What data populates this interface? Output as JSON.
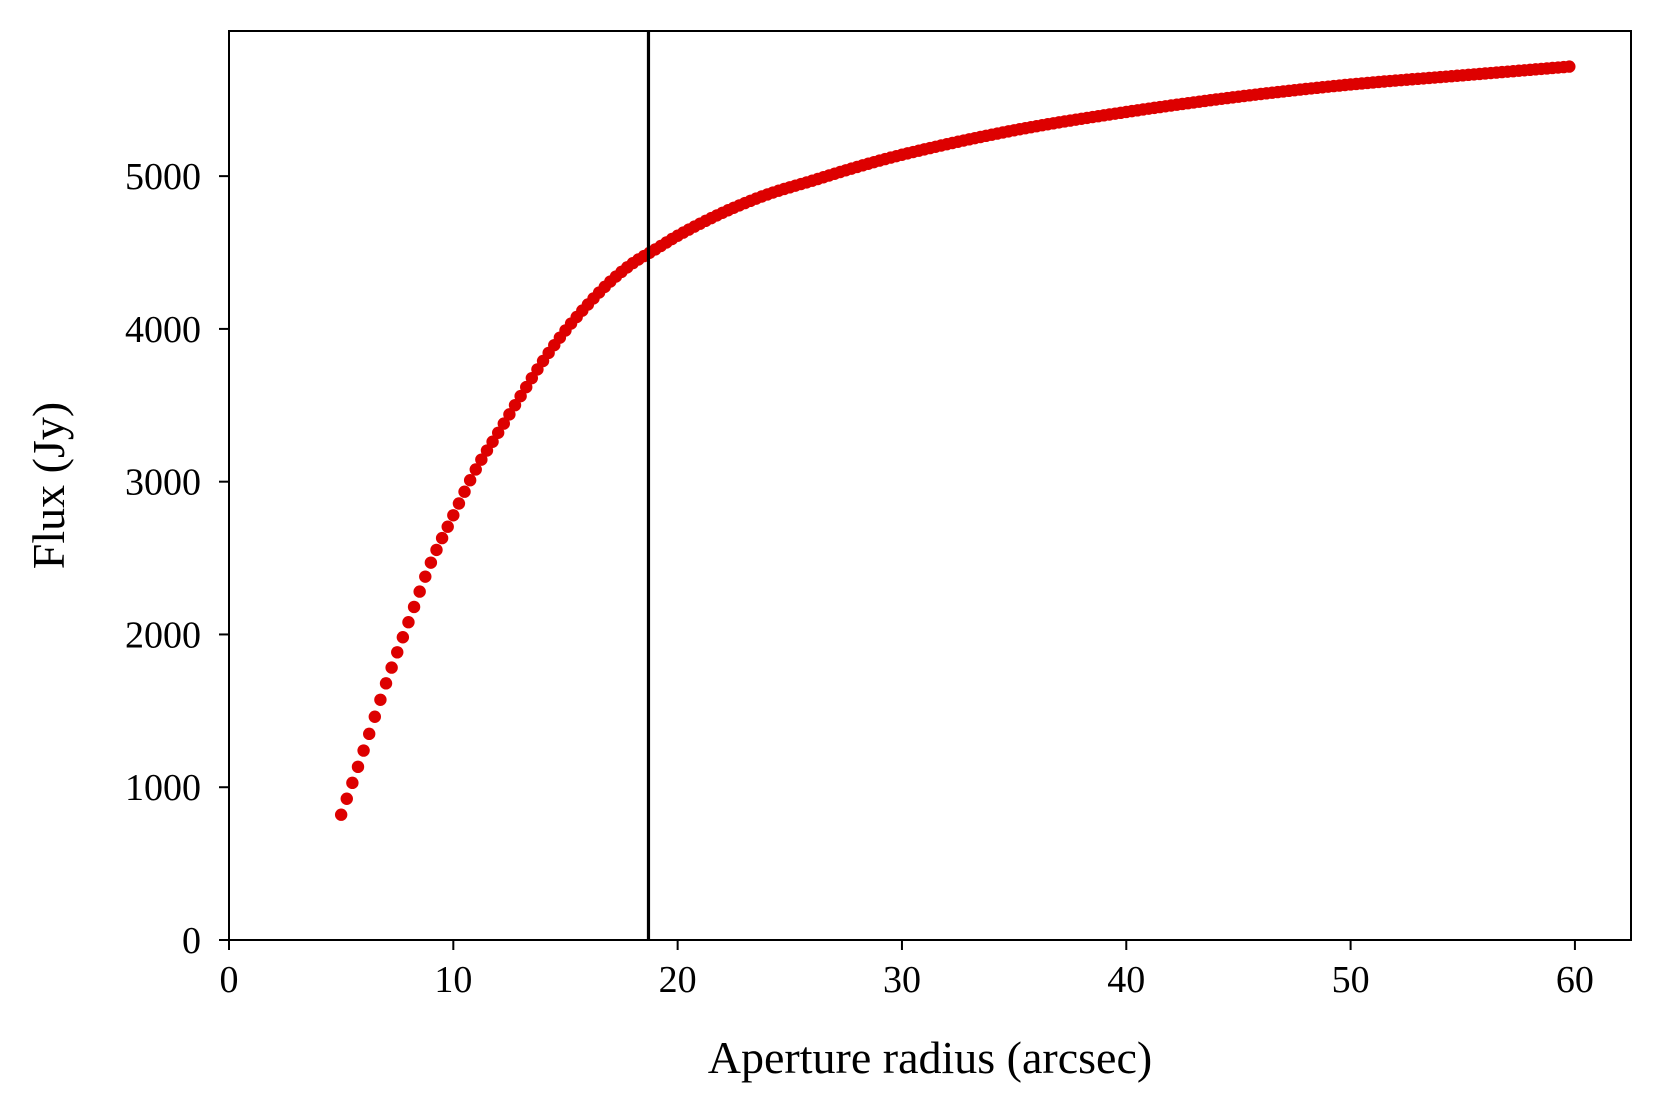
{
  "chart_data": {
    "type": "scatter",
    "title": "",
    "xlabel": "Aperture radius (arcsec)",
    "ylabel": "Flux (Jy)",
    "xlim": [
      0,
      62.5
    ],
    "ylim": [
      0,
      5950
    ],
    "xticks": [
      0,
      10,
      20,
      30,
      40,
      50,
      60
    ],
    "yticks": [
      0,
      1000,
      2000,
      3000,
      4000,
      5000
    ],
    "grid": false,
    "legend": "none",
    "marker_color": "#dd0000",
    "vline": {
      "x": 18.7,
      "color": "#000000"
    },
    "series": [
      {
        "x_start": 5.0,
        "x_end": 59.8,
        "x_step": 0.25,
        "curve_knots": {
          "x": [
            5,
            6,
            7,
            8,
            9,
            10,
            11,
            12,
            13,
            14,
            15,
            16,
            17,
            18,
            19,
            20,
            22,
            24,
            26,
            28,
            30,
            35,
            40,
            45,
            50,
            55,
            60
          ],
          "y": [
            820,
            1240,
            1680,
            2080,
            2470,
            2780,
            3080,
            3320,
            3560,
            3790,
            3990,
            4160,
            4310,
            4430,
            4520,
            4610,
            4760,
            4880,
            4970,
            5060,
            5140,
            5300,
            5420,
            5520,
            5600,
            5660,
            5720
          ]
        }
      }
    ]
  }
}
